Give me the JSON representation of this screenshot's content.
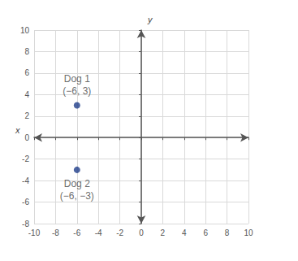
{
  "chart_data": {
    "type": "scatter",
    "xlabel": "x",
    "ylabel": "y",
    "series": [
      {
        "name": "Dog 1",
        "color": "#1f3d8a",
        "x": [
          -6
        ],
        "values": [
          3
        ],
        "value_labels": [
          "(−6, 3)"
        ]
      },
      {
        "name": "Dog 2",
        "color": "#1f3d8a",
        "x": [
          -6
        ],
        "values": [
          -3
        ],
        "value_labels": [
          "(−6, −3)"
        ]
      }
    ],
    "xlim": [
      -10,
      10
    ],
    "xticks": [
      -10,
      -8,
      -6,
      -4,
      -2,
      0,
      2,
      4,
      6,
      8,
      10
    ],
    "ylim": [
      -8,
      10
    ],
    "yticks": [
      -8,
      -6,
      -4,
      -2,
      0,
      2,
      4,
      6,
      8,
      10
    ],
    "grid": true
  }
}
